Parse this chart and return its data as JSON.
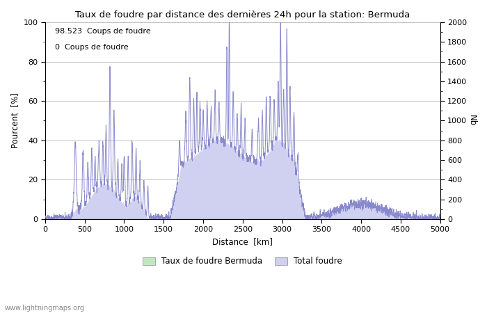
{
  "title": "Taux de foudre par distance des dernières 24h pour la station: Bermuda",
  "xlabel": "Distance  [km]",
  "ylabel_left": "Pourcent  [%]",
  "ylabel_right": "Nb",
  "annotation_line1": "98.523  Coups de foudre",
  "annotation_line2": "0  Coups de foudre",
  "xlim": [
    0,
    5000
  ],
  "ylim_left": [
    0,
    100
  ],
  "ylim_right": [
    0,
    2000
  ],
  "xticks": [
    0,
    500,
    1000,
    1500,
    2000,
    2500,
    3000,
    3500,
    4000,
    4500,
    5000
  ],
  "yticks_left": [
    0,
    20,
    40,
    60,
    80,
    100
  ],
  "yticks_right": [
    0,
    200,
    400,
    600,
    800,
    1000,
    1200,
    1400,
    1600,
    1800,
    2000
  ],
  "line_color": "#8888cc",
  "fill_color_total": "#d0d0f0",
  "fill_color_bermuda": "#c0e8c0",
  "legend_label1": "Taux de foudre Bermuda",
  "legend_label2": "Total foudre",
  "watermark": "www.lightningmaps.org",
  "bg_color": "#ffffff",
  "grid_color": "#aaaaaa",
  "fig_width": 7.0,
  "fig_height": 4.5,
  "dpi": 100
}
